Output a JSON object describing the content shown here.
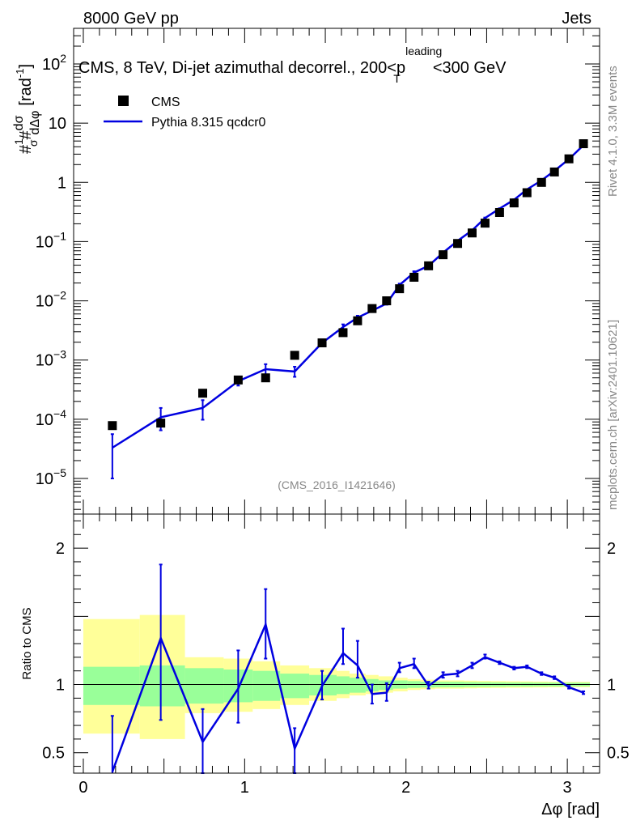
{
  "header": {
    "left": "8000 GeV pp",
    "right": "Jets"
  },
  "side_labels": {
    "rivet": "Rivet 4.1.0,  3.3M events",
    "mcplots": "mcplots.cern.ch [arXiv:2401.10621]"
  },
  "chart_data": [
    {
      "id": "main",
      "type": "scatter",
      "title": "CMS, 8 TeV, Di-jet azimuthal decorrel., 200<p",
      "title_sup": "leading",
      "title_sub": "T",
      "title_tail": "<300 GeV",
      "ylabel": "#1/#dσ/dΔφ [rad⁻¹]",
      "ylabel_parts": {
        "num1": "1",
        "den1": "σ",
        "num2": "dσ",
        "den2": "dΔφ",
        "unit": "[rad",
        "unit_exp": "-1",
        "unit_close": "]"
      },
      "yscale": "log",
      "ylim": [
        2.5e-06,
        400
      ],
      "xlim": [
        -0.06,
        3.2
      ],
      "y_tick_labels": [
        {
          "value": 1e-05,
          "base": "10",
          "exp": "−5"
        },
        {
          "value": 0.0001,
          "base": "10",
          "exp": "−4"
        },
        {
          "value": 0.001,
          "base": "10",
          "exp": "−3"
        },
        {
          "value": 0.01,
          "base": "10",
          "exp": "−2"
        },
        {
          "value": 0.1,
          "base": "10",
          "exp": "−1"
        },
        {
          "value": 1,
          "base": "1",
          "exp": ""
        },
        {
          "value": 10,
          "base": "10",
          "exp": ""
        },
        {
          "value": 100,
          "base": "10",
          "exp": "2"
        }
      ],
      "watermark": "(CMS_2016_I1421646)",
      "legend": [
        {
          "name": "CMS",
          "marker": "square",
          "color": "#000000"
        },
        {
          "name": "Pythia 8.315 qcdcr0",
          "marker": "line",
          "color": "#0000e0"
        }
      ],
      "x": [
        0.18,
        0.48,
        0.74,
        0.96,
        1.13,
        1.31,
        1.48,
        1.61,
        1.7,
        1.79,
        1.88,
        1.96,
        2.05,
        2.14,
        2.23,
        2.32,
        2.41,
        2.49,
        2.58,
        2.67,
        2.75,
        2.84,
        2.92,
        3.01,
        3.1
      ],
      "series": [
        {
          "name": "CMS",
          "values": [
            7.8e-05,
            8.6e-05,
            0.000275,
            0.00046,
            0.0005,
            0.0012,
            0.00195,
            0.0029,
            0.0046,
            0.0074,
            0.01,
            0.016,
            0.025,
            0.039,
            0.06,
            0.093,
            0.14,
            0.205,
            0.31,
            0.45,
            0.67,
            1.0,
            1.5,
            2.5,
            4.5
          ]
        },
        {
          "name": "Pythia 8.315 qcdcr0",
          "values": [
            3.3e-05,
            0.000108,
            0.000155,
            0.00044,
            0.0007,
            0.00064,
            0.00195,
            0.0036,
            0.0052,
            0.0068,
            0.009,
            0.0185,
            0.03,
            0.039,
            0.065,
            0.103,
            0.155,
            0.25,
            0.36,
            0.51,
            0.76,
            1.08,
            1.57,
            2.47,
            4.25
          ],
          "err_low": [
            1e-05,
            6.5e-05,
            9.8e-05,
            0.00037,
            0.00056,
            0.00052,
            0.0018,
            0.0032,
            0.0048,
            0.0065,
            0.0086,
            0.0175,
            0.0285,
            0.037,
            0.0625,
            0.1,
            0.15,
            0.245,
            0.355,
            0.5,
            0.75,
            1.07,
            1.55,
            2.44,
            4.2
          ],
          "err_high": [
            5.6e-05,
            0.000155,
            0.00021,
            0.00052,
            0.00085,
            0.00077,
            0.0021,
            0.004,
            0.0056,
            0.0071,
            0.0094,
            0.0195,
            0.0315,
            0.041,
            0.0675,
            0.106,
            0.16,
            0.255,
            0.365,
            0.52,
            0.77,
            1.09,
            1.59,
            2.5,
            4.3
          ]
        }
      ]
    },
    {
      "id": "ratio",
      "type": "line",
      "ylabel": "Ratio to CMS",
      "ylim": [
        0.35,
        2.25
      ],
      "xlim": [
        -0.06,
        3.2
      ],
      "y_ticks": [
        0.5,
        1,
        2
      ],
      "y_tick_labels": [
        "0.5",
        "1",
        "2"
      ],
      "x_ticks": [
        0,
        1,
        2,
        3
      ],
      "x_tick_labels": [
        "0",
        "1",
        "2",
        "3"
      ],
      "xlabel": "Δφ [rad]",
      "bin_edges": [
        0.0,
        0.35,
        0.63,
        0.87,
        1.05,
        1.22,
        1.4,
        1.57,
        1.65,
        1.75,
        1.83,
        1.92,
        2.01,
        2.09,
        2.18,
        2.27,
        2.36,
        2.44,
        2.53,
        2.62,
        2.71,
        2.79,
        2.88,
        2.97,
        3.05,
        3.14
      ],
      "band_green": [
        [
          0.85,
          1.13
        ],
        [
          0.84,
          1.14
        ],
        [
          0.86,
          1.12
        ],
        [
          0.87,
          1.11
        ],
        [
          0.88,
          1.1
        ],
        [
          0.9,
          1.08
        ],
        [
          0.92,
          1.07
        ],
        [
          0.93,
          1.06
        ],
        [
          0.94,
          1.05
        ],
        [
          0.95,
          1.04
        ],
        [
          0.96,
          1.03
        ],
        [
          0.97,
          1.03
        ],
        [
          0.975,
          1.025
        ],
        [
          0.978,
          1.02
        ],
        [
          0.98,
          1.02
        ],
        [
          0.98,
          1.02
        ],
        [
          0.982,
          1.018
        ],
        [
          0.983,
          1.017
        ],
        [
          0.984,
          1.016
        ],
        [
          0.985,
          1.015
        ],
        [
          0.985,
          1.015
        ],
        [
          0.986,
          1.014
        ],
        [
          0.986,
          1.014
        ],
        [
          0.987,
          1.013
        ],
        [
          0.987,
          1.013
        ]
      ],
      "band_yellow": [
        [
          0.64,
          1.48
        ],
        [
          0.6,
          1.51
        ],
        [
          0.79,
          1.2
        ],
        [
          0.8,
          1.19
        ],
        [
          0.82,
          1.17
        ],
        [
          0.85,
          1.14
        ],
        [
          0.88,
          1.12
        ],
        [
          0.9,
          1.1
        ],
        [
          0.92,
          1.08
        ],
        [
          0.93,
          1.07
        ],
        [
          0.94,
          1.06
        ],
        [
          0.95,
          1.05
        ],
        [
          0.96,
          1.04
        ],
        [
          0.965,
          1.035
        ],
        [
          0.97,
          1.03
        ],
        [
          0.97,
          1.03
        ],
        [
          0.972,
          1.028
        ],
        [
          0.974,
          1.026
        ],
        [
          0.975,
          1.025
        ],
        [
          0.976,
          1.024
        ],
        [
          0.977,
          1.023
        ],
        [
          0.978,
          1.022
        ],
        [
          0.979,
          1.021
        ],
        [
          0.98,
          1.02
        ],
        [
          0.98,
          1.02
        ]
      ],
      "values": [
        0.36,
        1.34,
        0.58,
        0.97,
        1.44,
        0.53,
        0.99,
        1.23,
        1.14,
        0.93,
        0.94,
        1.12,
        1.15,
        0.99,
        1.07,
        1.08,
        1.14,
        1.2,
        1.16,
        1.12,
        1.13,
        1.08,
        1.05,
        0.98,
        0.94
      ],
      "err_low": [
        0.05,
        0.74,
        0.35,
        0.72,
        1.19,
        0.35,
        0.89,
        1.15,
        1.05,
        0.86,
        0.88,
        1.09,
        1.12,
        0.97,
        1.05,
        1.06,
        1.12,
        1.19,
        1.15,
        1.11,
        1.12,
        1.07,
        1.04,
        0.97,
        0.93
      ],
      "err_high": [
        0.77,
        1.88,
        0.82,
        1.25,
        1.7,
        0.68,
        1.1,
        1.41,
        1.32,
        1.0,
        1.01,
        1.16,
        1.19,
        1.02,
        1.09,
        1.1,
        1.16,
        1.22,
        1.17,
        1.13,
        1.14,
        1.09,
        1.06,
        0.99,
        0.95
      ]
    }
  ]
}
